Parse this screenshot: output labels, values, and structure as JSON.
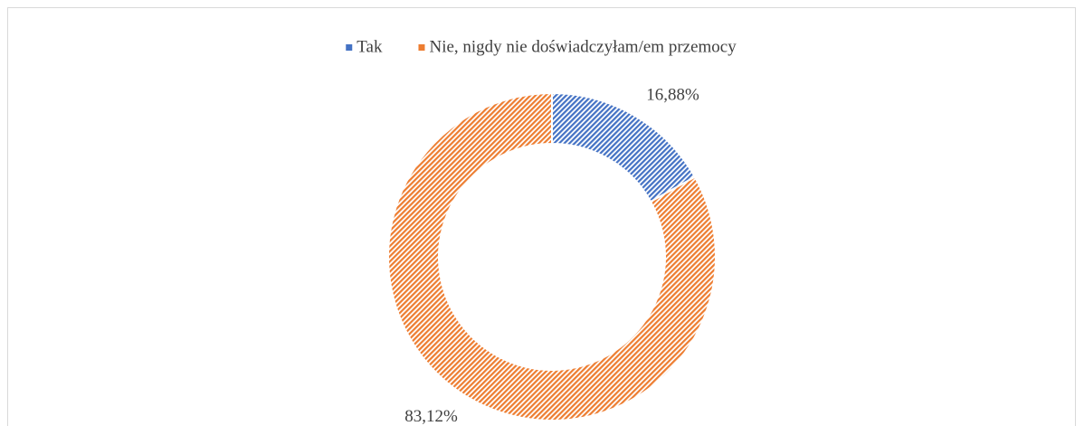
{
  "chart_data": {
    "type": "donut",
    "categories": [
      "Tak",
      "Nie, nigdy nie doświadczyłam/em przemocy"
    ],
    "values": [
      16.88,
      83.12
    ],
    "value_labels": [
      "16,88%",
      "83,12%"
    ],
    "colors": [
      "#4472c4",
      "#ed7d31"
    ],
    "legend": "top"
  }
}
